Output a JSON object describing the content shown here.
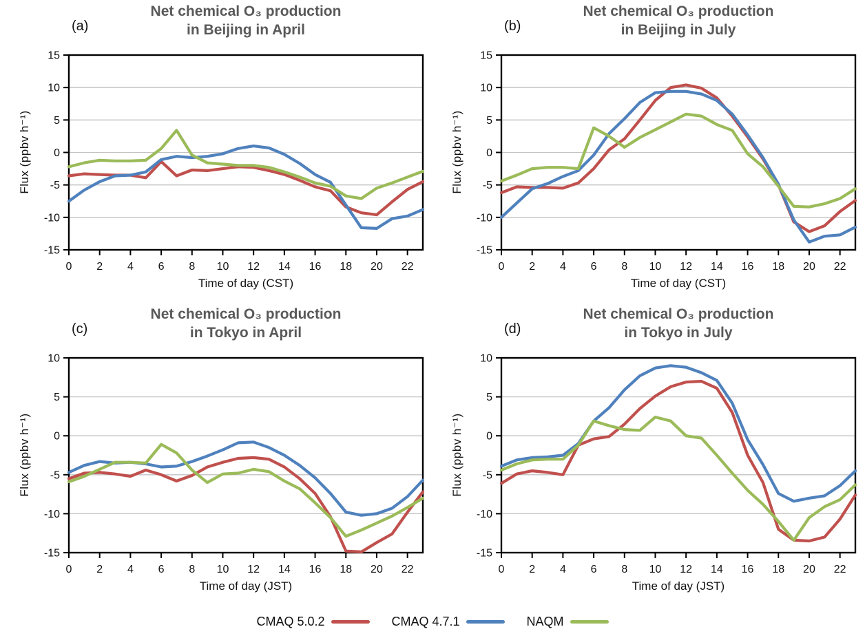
{
  "page": {
    "background": "#FFFFFF"
  },
  "colors": {
    "cmaq502_red": "#C0504D",
    "cmaq471_blue": "#4F81BD",
    "naqm_green": "#9BBB59",
    "title_gray": "#595959",
    "gridline_gray": "#C3C3C3",
    "axis_black": "#000000"
  },
  "legend": {
    "items": [
      {
        "label": "CMAQ 5.0.2",
        "color": "#C0504D"
      },
      {
        "label": "CMAQ 4.7.1",
        "color": "#4F81BD"
      },
      {
        "label": "NAQM",
        "color": "#9BBB59"
      }
    ]
  },
  "chart_data": [
    {
      "type": "line",
      "panel_label": "(a)",
      "title_line1": "Net chemical O₃ production",
      "title_line2": "in Beijing in April",
      "xlabel": "Time of day (CST)",
      "ylabel": "Flux (ppbv h⁻¹)",
      "x": [
        0,
        1,
        2,
        3,
        4,
        5,
        6,
        7,
        8,
        9,
        10,
        11,
        12,
        13,
        14,
        15,
        16,
        17,
        18,
        19,
        20,
        21,
        22,
        23
      ],
      "xticks": [
        0,
        2,
        4,
        6,
        8,
        10,
        12,
        14,
        16,
        18,
        20,
        22
      ],
      "ylim": [
        -15,
        15
      ],
      "yticks": [
        15,
        10,
        5,
        0,
        -5,
        -10,
        -15
      ],
      "grid": true,
      "series": [
        {
          "name": "CMAQ 5.0.2",
          "color": "#C0504D",
          "values": [
            -3.6,
            -3.3,
            -3.4,
            -3.5,
            -3.5,
            -3.9,
            -1.4,
            -3.6,
            -2.7,
            -2.8,
            -2.5,
            -2.2,
            -2.3,
            -2.8,
            -3.4,
            -4.3,
            -5.3,
            -5.9,
            -8.4,
            -9.3,
            -9.6,
            -7.6,
            -5.7,
            -4.5
          ]
        },
        {
          "name": "CMAQ 4.7.1",
          "color": "#4F81BD",
          "values": [
            -7.5,
            -5.8,
            -4.5,
            -3.6,
            -3.5,
            -3.0,
            -1.1,
            -0.6,
            -0.8,
            -0.6,
            -0.2,
            0.6,
            1.0,
            0.7,
            -0.3,
            -1.7,
            -3.4,
            -4.6,
            -8.1,
            -11.6,
            -11.7,
            -10.2,
            -9.8,
            -8.8
          ]
        },
        {
          "name": "NAQM",
          "color": "#9BBB59",
          "values": [
            -2.2,
            -1.6,
            -1.2,
            -1.3,
            -1.3,
            -1.2,
            0.6,
            3.4,
            -0.4,
            -1.6,
            -1.8,
            -2.0,
            -2.0,
            -2.3,
            -3.0,
            -3.8,
            -4.7,
            -5.2,
            -6.7,
            -7.1,
            -5.5,
            -4.7,
            -3.8,
            -2.9
          ]
        }
      ]
    },
    {
      "type": "line",
      "panel_label": "(b)",
      "title_line1": "Net chemical O₃ production",
      "title_line2": "in Beijing in July",
      "xlabel": "Time of day (CST)",
      "ylabel": "Flux (ppbv h⁻¹)",
      "x": [
        0,
        1,
        2,
        3,
        4,
        5,
        6,
        7,
        8,
        9,
        10,
        11,
        12,
        13,
        14,
        15,
        16,
        17,
        18,
        19,
        20,
        21,
        22,
        23
      ],
      "xticks": [
        0,
        2,
        4,
        6,
        8,
        10,
        12,
        14,
        16,
        18,
        20,
        22
      ],
      "ylim": [
        -15,
        15
      ],
      "yticks": [
        15,
        10,
        5,
        0,
        -5,
        -10,
        -15
      ],
      "grid": true,
      "series": [
        {
          "name": "CMAQ 5.0.2",
          "color": "#C0504D",
          "values": [
            -6.2,
            -5.3,
            -5.4,
            -5.4,
            -5.5,
            -4.7,
            -2.5,
            0.4,
            2.1,
            5.0,
            8.0,
            10.0,
            10.4,
            9.9,
            8.4,
            5.6,
            2.4,
            -1.0,
            -5.0,
            -10.7,
            -12.2,
            -11.3,
            -9.1,
            -7.4
          ]
        },
        {
          "name": "CMAQ 4.7.1",
          "color": "#4F81BD",
          "values": [
            -10.0,
            -7.8,
            -5.6,
            -4.8,
            -3.7,
            -2.8,
            -0.4,
            2.9,
            5.2,
            7.7,
            9.2,
            9.4,
            9.4,
            9.0,
            8.0,
            5.9,
            2.7,
            -0.8,
            -4.9,
            -10.4,
            -13.8,
            -12.9,
            -12.7,
            -11.5
          ]
        },
        {
          "name": "NAQM",
          "color": "#9BBB59",
          "values": [
            -4.4,
            -3.5,
            -2.5,
            -2.3,
            -2.3,
            -2.5,
            3.8,
            2.5,
            0.8,
            2.3,
            3.5,
            4.7,
            5.9,
            5.6,
            4.3,
            3.4,
            -0.2,
            -2.2,
            -5.2,
            -8.3,
            -8.4,
            -7.9,
            -7.1,
            -5.6
          ]
        }
      ]
    },
    {
      "type": "line",
      "panel_label": "(c)",
      "title_line1": "Net chemical O₃ production",
      "title_line2": "in Tokyo in April",
      "xlabel": "Time of day (JST)",
      "ylabel": "Flux (ppbv h⁻¹)",
      "x": [
        0,
        1,
        2,
        3,
        4,
        5,
        6,
        7,
        8,
        9,
        10,
        11,
        12,
        13,
        14,
        15,
        16,
        17,
        18,
        19,
        20,
        21,
        22,
        23
      ],
      "xticks": [
        0,
        2,
        4,
        6,
        8,
        10,
        12,
        14,
        16,
        18,
        20,
        22
      ],
      "ylim": [
        -15,
        10
      ],
      "yticks": [
        10,
        5,
        0,
        -5,
        -10,
        -15
      ],
      "grid": true,
      "series": [
        {
          "name": "CMAQ 5.0.2",
          "color": "#C0504D",
          "values": [
            -5.5,
            -4.8,
            -4.7,
            -4.9,
            -5.2,
            -4.4,
            -5.0,
            -5.8,
            -5.1,
            -4.0,
            -3.4,
            -2.9,
            -2.8,
            -3.0,
            -4.0,
            -5.5,
            -7.4,
            -10.4,
            -14.8,
            -14.9,
            -13.7,
            -12.6,
            -9.8,
            -7.2
          ]
        },
        {
          "name": "CMAQ 4.7.1",
          "color": "#4F81BD",
          "values": [
            -4.7,
            -3.8,
            -3.3,
            -3.5,
            -3.4,
            -3.6,
            -4.0,
            -3.9,
            -3.3,
            -2.6,
            -1.8,
            -0.9,
            -0.8,
            -1.5,
            -2.5,
            -3.8,
            -5.4,
            -7.4,
            -9.8,
            -10.2,
            -10.0,
            -9.3,
            -7.8,
            -5.7
          ]
        },
        {
          "name": "NAQM",
          "color": "#9BBB59",
          "values": [
            -5.9,
            -5.2,
            -4.3,
            -3.4,
            -3.4,
            -3.5,
            -1.1,
            -2.2,
            -4.4,
            -6.0,
            -4.9,
            -4.8,
            -4.3,
            -4.6,
            -5.8,
            -6.8,
            -8.6,
            -10.5,
            -12.9,
            -12.1,
            -11.2,
            -10.3,
            -9.2,
            -8.0
          ]
        }
      ]
    },
    {
      "type": "line",
      "panel_label": "(d)",
      "title_line1": "Net chemical O₃ production",
      "title_line2": "in Tokyo in July",
      "xlabel": "Time of day (JST)",
      "ylabel": "Flux (ppbv h⁻¹)",
      "x": [
        0,
        1,
        2,
        3,
        4,
        5,
        6,
        7,
        8,
        9,
        10,
        11,
        12,
        13,
        14,
        15,
        16,
        17,
        18,
        19,
        20,
        21,
        22,
        23
      ],
      "xticks": [
        0,
        2,
        4,
        6,
        8,
        10,
        12,
        14,
        16,
        18,
        20,
        22
      ],
      "ylim": [
        -15,
        10
      ],
      "yticks": [
        10,
        5,
        0,
        -5,
        -10,
        -15
      ],
      "grid": true,
      "series": [
        {
          "name": "CMAQ 5.0.2",
          "color": "#C0504D",
          "values": [
            -6.1,
            -4.9,
            -4.5,
            -4.7,
            -5.0,
            -1.2,
            -0.4,
            -0.1,
            1.5,
            3.5,
            5.1,
            6.3,
            6.9,
            7.0,
            6.1,
            3.0,
            -2.5,
            -6.0,
            -12.0,
            -13.4,
            -13.5,
            -13.0,
            -10.7,
            -7.6
          ]
        },
        {
          "name": "CMAQ 4.7.1",
          "color": "#4F81BD",
          "values": [
            -3.9,
            -3.1,
            -2.8,
            -2.7,
            -2.5,
            -1.0,
            1.9,
            3.6,
            5.9,
            7.7,
            8.7,
            9.0,
            8.8,
            8.1,
            7.1,
            4.2,
            -0.5,
            -3.7,
            -7.4,
            -8.4,
            -8.0,
            -7.7,
            -6.4,
            -4.5
          ]
        },
        {
          "name": "NAQM",
          "color": "#9BBB59",
          "values": [
            -4.4,
            -3.6,
            -3.1,
            -3.0,
            -3.0,
            -1.2,
            1.9,
            1.3,
            0.8,
            0.7,
            2.4,
            1.9,
            0.0,
            -0.3,
            -2.5,
            -4.8,
            -7.0,
            -8.8,
            -11.0,
            -13.4,
            -10.5,
            -9.1,
            -8.2,
            -6.3
          ]
        }
      ]
    }
  ]
}
